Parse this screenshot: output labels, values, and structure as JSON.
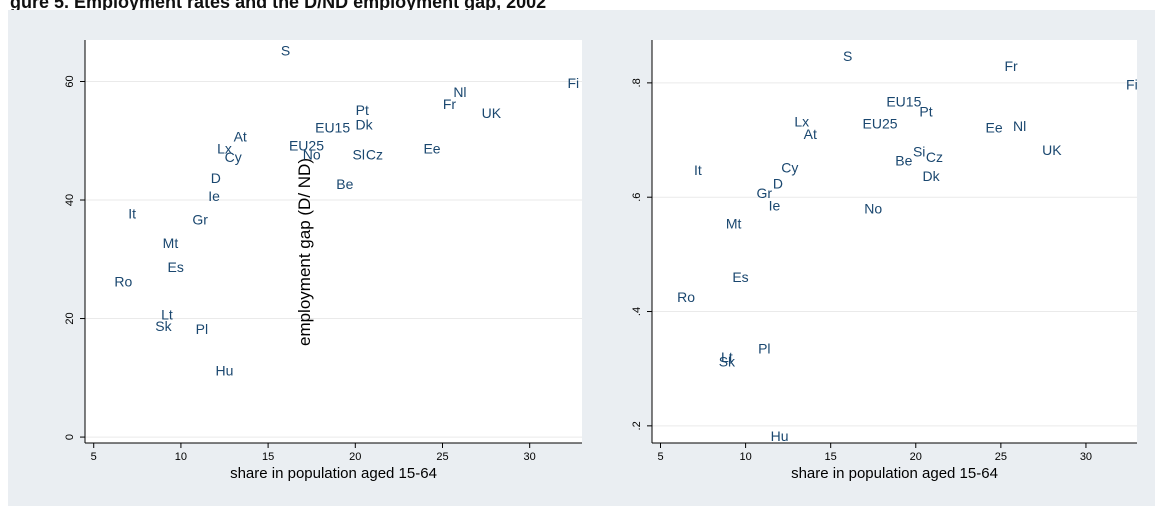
{
  "page_title": "gure 5. Employment rates and the D/ND employment gap, 2002",
  "colors": {
    "marker_label": "#1a476f",
    "panel": "#eaeef2",
    "plot": "#ffffff",
    "grid": "#eaeaea",
    "axis": "#000000"
  },
  "chart_data": [
    {
      "type": "scatter",
      "title": "",
      "xlabel": "share in population aged 15-64",
      "ylabel": "employment gap (D/ ND)",
      "xlim": [
        4.5,
        33
      ],
      "ylim": [
        -1,
        67
      ],
      "xticks": [
        5,
        10,
        15,
        20,
        25,
        30
      ],
      "yticks": [
        0,
        20,
        40,
        60
      ],
      "ytick_labels": [
        "0",
        "20",
        "40",
        "60"
      ],
      "grid": true,
      "points": [
        {
          "label": "S",
          "x": 16.0,
          "y": 65.0
        },
        {
          "label": "Fi",
          "x": 32.5,
          "y": 59.5
        },
        {
          "label": "Nl",
          "x": 26.0,
          "y": 58.0
        },
        {
          "label": "Fr",
          "x": 25.4,
          "y": 56.0
        },
        {
          "label": "Pt",
          "x": 20.4,
          "y": 55.0
        },
        {
          "label": "UK",
          "x": 27.8,
          "y": 54.5
        },
        {
          "label": "Dk",
          "x": 20.5,
          "y": 52.5
        },
        {
          "label": "EU15",
          "x": 18.7,
          "y": 52.0
        },
        {
          "label": "At",
          "x": 13.4,
          "y": 50.5
        },
        {
          "label": "EU25",
          "x": 17.2,
          "y": 49.0
        },
        {
          "label": "Lx",
          "x": 12.5,
          "y": 48.5
        },
        {
          "label": "Ee",
          "x": 24.4,
          "y": 48.5
        },
        {
          "label": "No",
          "x": 17.5,
          "y": 47.5
        },
        {
          "label": "Cy",
          "x": 13.0,
          "y": 47.0
        },
        {
          "label": "Sl",
          "x": 20.2,
          "y": 47.5
        },
        {
          "label": "Cz",
          "x": 21.1,
          "y": 47.5
        },
        {
          "label": "D",
          "x": 12.0,
          "y": 43.5
        },
        {
          "label": "Be",
          "x": 19.4,
          "y": 42.5
        },
        {
          "label": "Ie",
          "x": 11.9,
          "y": 40.5
        },
        {
          "label": "It",
          "x": 7.2,
          "y": 37.5
        },
        {
          "label": "Gr",
          "x": 11.1,
          "y": 36.5
        },
        {
          "label": "Mt",
          "x": 9.4,
          "y": 32.5
        },
        {
          "label": "Es",
          "x": 9.7,
          "y": 28.5
        },
        {
          "label": "Ro",
          "x": 6.7,
          "y": 26.0
        },
        {
          "label": "Lt",
          "x": 9.2,
          "y": 20.5
        },
        {
          "label": "Sk",
          "x": 9.0,
          "y": 18.5
        },
        {
          "label": "Pl",
          "x": 11.2,
          "y": 18.0
        },
        {
          "label": "Hu",
          "x": 12.5,
          "y": 11.0
        }
      ]
    },
    {
      "type": "scatter",
      "title": "",
      "xlabel": "share in population aged 15-64",
      "ylabel": "",
      "xlim": [
        4.5,
        33
      ],
      "ylim": [
        0.17,
        0.875
      ],
      "xticks": [
        5,
        10,
        15,
        20,
        25,
        30
      ],
      "yticks": [
        0.2,
        0.4,
        0.6,
        0.8
      ],
      "ytick_labels": [
        ".2",
        ".4",
        ".6",
        ".8"
      ],
      "grid": true,
      "points": [
        {
          "label": "S",
          "x": 16.0,
          "y": 0.845
        },
        {
          "label": "Fr",
          "x": 25.6,
          "y": 0.827
        },
        {
          "label": "Fi",
          "x": 32.7,
          "y": 0.795
        },
        {
          "label": "EU15",
          "x": 19.3,
          "y": 0.765
        },
        {
          "label": "Pt",
          "x": 20.6,
          "y": 0.748
        },
        {
          "label": "Lx",
          "x": 13.3,
          "y": 0.73
        },
        {
          "label": "EU25",
          "x": 17.9,
          "y": 0.727
        },
        {
          "label": "Ee",
          "x": 24.6,
          "y": 0.72
        },
        {
          "label": "Nl",
          "x": 26.1,
          "y": 0.722
        },
        {
          "label": "At",
          "x": 13.8,
          "y": 0.708
        },
        {
          "label": "UK",
          "x": 28.0,
          "y": 0.68
        },
        {
          "label": "Si",
          "x": 20.2,
          "y": 0.678
        },
        {
          "label": "Cz",
          "x": 21.1,
          "y": 0.668
        },
        {
          "label": "Be",
          "x": 19.3,
          "y": 0.662
        },
        {
          "label": "Cy",
          "x": 12.6,
          "y": 0.65
        },
        {
          "label": "It",
          "x": 7.2,
          "y": 0.645
        },
        {
          "label": "Dk",
          "x": 20.9,
          "y": 0.635
        },
        {
          "label": "D",
          "x": 11.9,
          "y": 0.622
        },
        {
          "label": "Gr",
          "x": 11.1,
          "y": 0.605
        },
        {
          "label": "Ie",
          "x": 11.7,
          "y": 0.583
        },
        {
          "label": "No",
          "x": 17.5,
          "y": 0.578
        },
        {
          "label": "Mt",
          "x": 9.3,
          "y": 0.552
        },
        {
          "label": "Es",
          "x": 9.7,
          "y": 0.458
        },
        {
          "label": "Ro",
          "x": 6.5,
          "y": 0.423
        },
        {
          "label": "Pl",
          "x": 11.1,
          "y": 0.333
        },
        {
          "label": "Lt",
          "x": 8.9,
          "y": 0.318
        },
        {
          "label": "Sk",
          "x": 8.9,
          "y": 0.31
        },
        {
          "label": "Hu",
          "x": 12.0,
          "y": 0.18
        }
      ]
    }
  ]
}
